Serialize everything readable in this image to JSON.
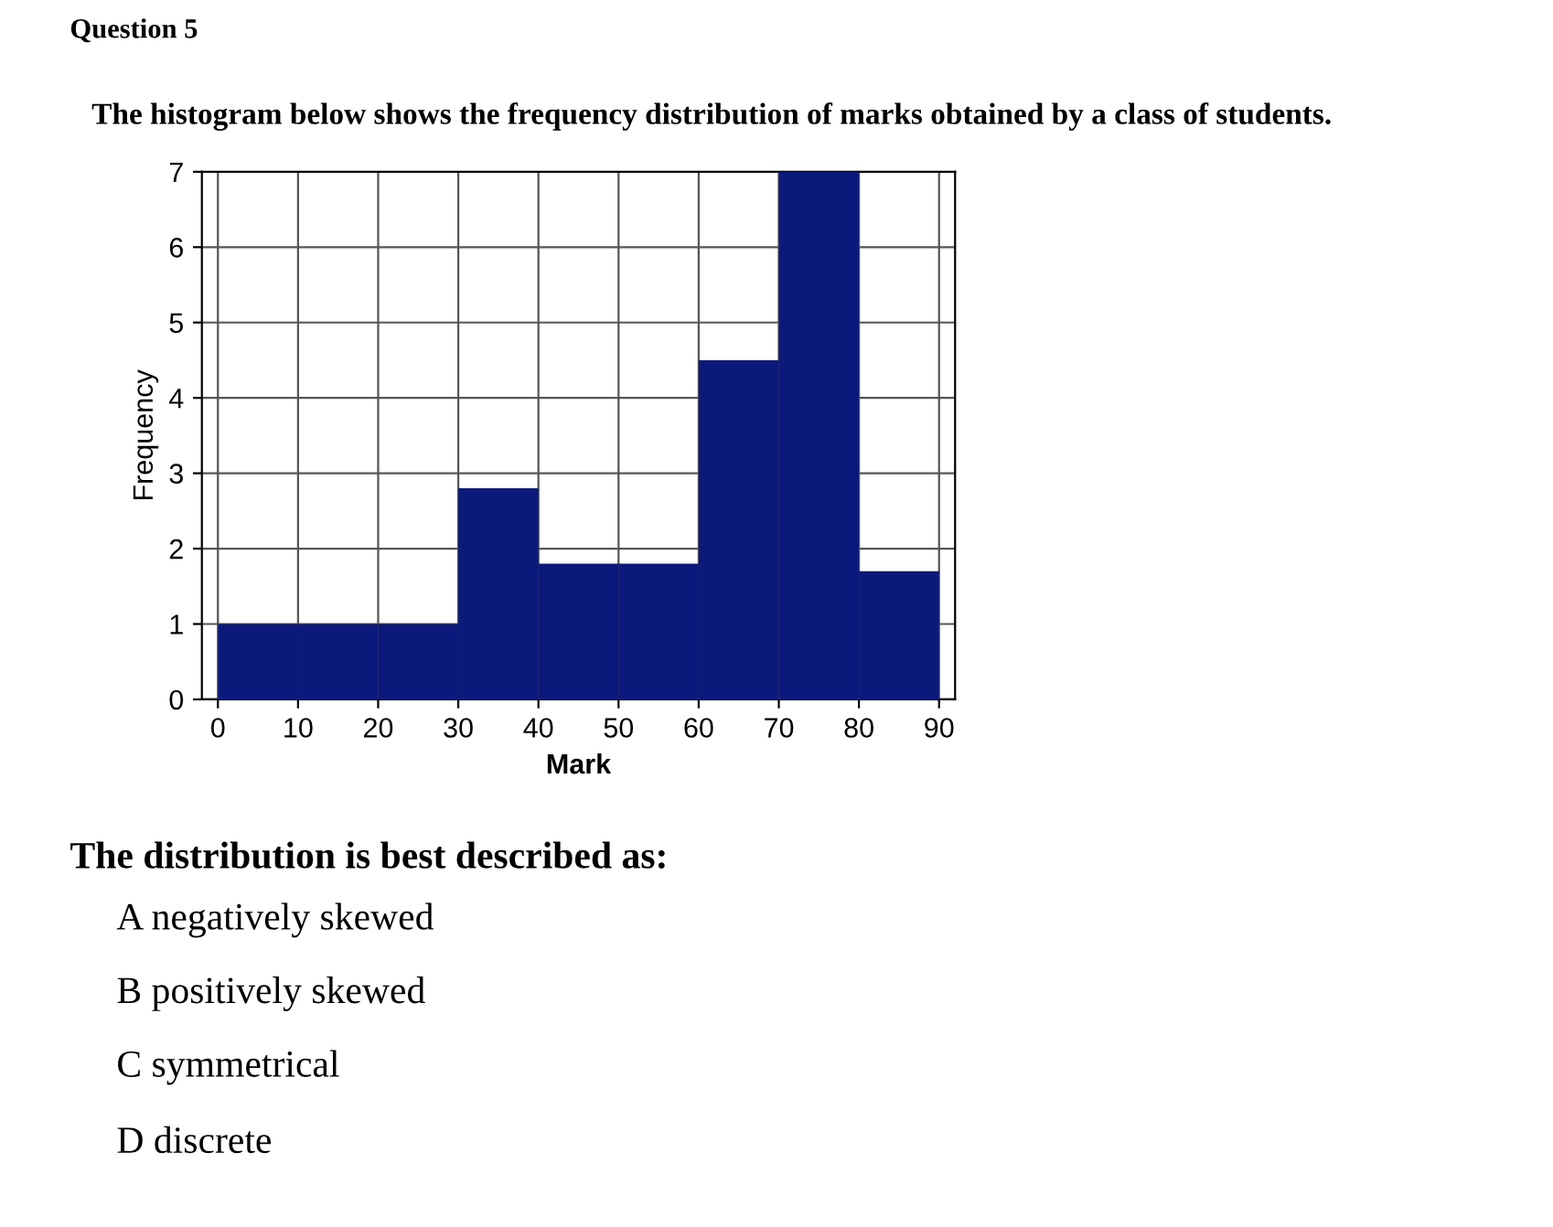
{
  "chart_data": {
    "type": "histogram",
    "title": "Question 5",
    "subtitle": "The histogram below shows the frequency distribution of marks obtained by a class of students.",
    "xlabel": "Mark",
    "ylabel": "Frequency",
    "bins": [
      0,
      10,
      20,
      30,
      40,
      50,
      60,
      70,
      80,
      90
    ],
    "values": [
      1,
      1,
      1,
      2.8,
      1.8,
      1.8,
      4.5,
      7,
      1.7
    ],
    "color": "#0b1a7a",
    "xlim": [
      -2,
      92
    ],
    "xticks": [
      0,
      10,
      20,
      30,
      40,
      50,
      60,
      70,
      80,
      90
    ],
    "ylim": [
      0,
      7
    ],
    "yticks": [
      0,
      1,
      2,
      3,
      4,
      5,
      6,
      7
    ],
    "grid": true,
    "annotations": [
      "The distribution is best described as:",
      "A negatively skewed",
      "B positively skewed",
      "C symmetrical",
      "D discrete"
    ]
  }
}
